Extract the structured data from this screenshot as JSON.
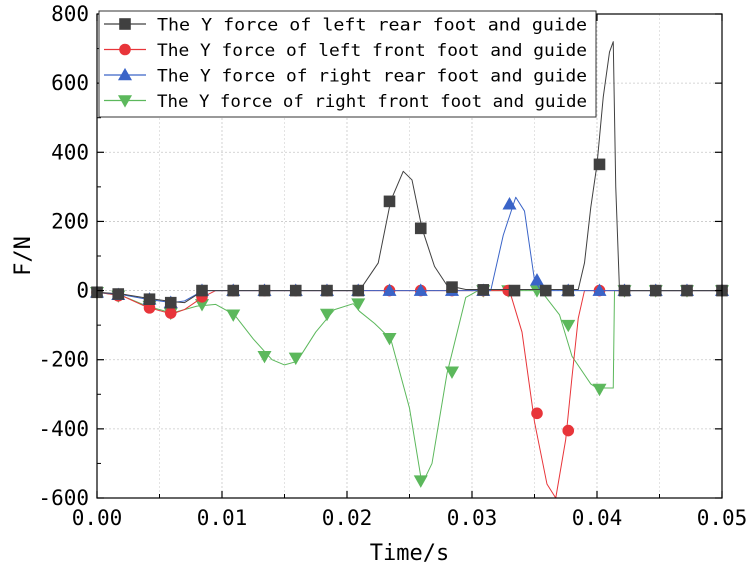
{
  "chart_data": {
    "type": "line",
    "title": "",
    "xlabel": "Time/s",
    "ylabel": "F/N",
    "xlim": [
      0,
      0.05
    ],
    "ylim": [
      -600,
      800
    ],
    "xticks": [
      0,
      0.01,
      0.02,
      0.03,
      0.04,
      0.05
    ],
    "xtick_labels": [
      "0.00",
      "0.01",
      "0.02",
      "0.03",
      "0.04",
      "0.05"
    ],
    "yticks": [
      -600,
      -400,
      -200,
      0,
      200,
      400,
      600,
      800
    ],
    "ytick_labels": [
      "-600",
      "-400",
      "-200",
      "0",
      "200",
      "400",
      "600",
      "800"
    ],
    "grid": true,
    "legend_position": "top-left",
    "series": [
      {
        "name": "The Y force of left rear foot and guide",
        "color": "#404040",
        "marker": "square",
        "line": [
          [
            0,
            -5
          ],
          [
            0.002,
            -10
          ],
          [
            0.004,
            -22
          ],
          [
            0.006,
            -32
          ],
          [
            0.007,
            -35
          ],
          [
            0.0085,
            0
          ],
          [
            0.021,
            0
          ],
          [
            0.0225,
            80
          ],
          [
            0.0235,
            260
          ],
          [
            0.0245,
            345
          ],
          [
            0.0252,
            320
          ],
          [
            0.026,
            180
          ],
          [
            0.027,
            70
          ],
          [
            0.028,
            15
          ],
          [
            0.0295,
            3
          ],
          [
            0.0385,
            3
          ],
          [
            0.039,
            80
          ],
          [
            0.0395,
            240
          ],
          [
            0.04,
            365
          ],
          [
            0.0405,
            560
          ],
          [
            0.041,
            690
          ],
          [
            0.0413,
            720
          ],
          [
            0.0415,
            300
          ],
          [
            0.0418,
            0
          ],
          [
            0.05,
            0
          ]
        ],
        "markers": [
          [
            0,
            -5
          ],
          [
            0.0017,
            -10
          ],
          [
            0.0042,
            -25
          ],
          [
            0.0059,
            -35
          ],
          [
            0.0084,
            0
          ],
          [
            0.0109,
            0
          ],
          [
            0.0134,
            0
          ],
          [
            0.0159,
            0
          ],
          [
            0.0184,
            0
          ],
          [
            0.0209,
            0
          ],
          [
            0.0234,
            258
          ],
          [
            0.0259,
            180
          ],
          [
            0.0284,
            10
          ],
          [
            0.0309,
            2
          ],
          [
            0.0334,
            0
          ],
          [
            0.0359,
            0
          ],
          [
            0.0377,
            0
          ],
          [
            0.0402,
            365
          ],
          [
            0.0422,
            0
          ],
          [
            0.0447,
            0
          ],
          [
            0.0472,
            0
          ],
          [
            0.05,
            0
          ]
        ]
      },
      {
        "name": "The Y force of left front foot and guide",
        "color": "#e8353a",
        "marker": "circle",
        "line": [
          [
            0,
            -5
          ],
          [
            0.002,
            -15
          ],
          [
            0.004,
            -48
          ],
          [
            0.006,
            -68
          ],
          [
            0.007,
            -55
          ],
          [
            0.0085,
            -18
          ],
          [
            0.0095,
            0
          ],
          [
            0.033,
            0
          ],
          [
            0.034,
            -120
          ],
          [
            0.035,
            -380
          ],
          [
            0.036,
            -560
          ],
          [
            0.0367,
            -600
          ],
          [
            0.0375,
            -430
          ],
          [
            0.038,
            -250
          ],
          [
            0.0385,
            -80
          ],
          [
            0.039,
            0
          ],
          [
            0.05,
            0
          ]
        ],
        "markers": [
          [
            0,
            -5
          ],
          [
            0.0017,
            -15
          ],
          [
            0.0042,
            -50
          ],
          [
            0.0059,
            -65
          ],
          [
            0.0084,
            -18
          ],
          [
            0.0109,
            0
          ],
          [
            0.0134,
            0
          ],
          [
            0.0159,
            0
          ],
          [
            0.0184,
            0
          ],
          [
            0.0209,
            0
          ],
          [
            0.0234,
            0
          ],
          [
            0.0259,
            0
          ],
          [
            0.0284,
            0
          ],
          [
            0.0309,
            0
          ],
          [
            0.0329,
            0
          ],
          [
            0.0352,
            -355
          ],
          [
            0.0377,
            -405
          ],
          [
            0.0402,
            0
          ],
          [
            0.0422,
            0
          ],
          [
            0.0447,
            0
          ],
          [
            0.0472,
            0
          ],
          [
            0.05,
            0
          ]
        ]
      },
      {
        "name": "The Y force of right rear foot and guide",
        "color": "#3a64c8",
        "marker": "triangle-up",
        "line": [
          [
            0,
            -5
          ],
          [
            0.002,
            -12
          ],
          [
            0.004,
            -25
          ],
          [
            0.006,
            -35
          ],
          [
            0.007,
            -30
          ],
          [
            0.0085,
            0
          ],
          [
            0.0315,
            0
          ],
          [
            0.0325,
            160
          ],
          [
            0.0335,
            270
          ],
          [
            0.0342,
            230
          ],
          [
            0.035,
            30
          ],
          [
            0.0355,
            0
          ],
          [
            0.05,
            0
          ]
        ],
        "markers": [
          [
            0,
            -5
          ],
          [
            0.0017,
            -12
          ],
          [
            0.0042,
            -25
          ],
          [
            0.0059,
            -35
          ],
          [
            0.0084,
            0
          ],
          [
            0.0109,
            0
          ],
          [
            0.0134,
            0
          ],
          [
            0.0159,
            0
          ],
          [
            0.0184,
            0
          ],
          [
            0.0209,
            0
          ],
          [
            0.0234,
            0
          ],
          [
            0.0259,
            0
          ],
          [
            0.0284,
            0
          ],
          [
            0.0309,
            0
          ],
          [
            0.033,
            250
          ],
          [
            0.0352,
            30
          ],
          [
            0.0377,
            0
          ],
          [
            0.0402,
            0
          ],
          [
            0.0422,
            0
          ],
          [
            0.0447,
            0
          ],
          [
            0.0472,
            0
          ],
          [
            0.05,
            0
          ]
        ]
      },
      {
        "name": "The Y force of right front foot and guide",
        "color": "#5cb85c",
        "marker": "triangle-down",
        "line": [
          [
            0,
            -5
          ],
          [
            0.002,
            -15
          ],
          [
            0.004,
            -45
          ],
          [
            0.006,
            -65
          ],
          [
            0.008,
            -45
          ],
          [
            0.0095,
            -40
          ],
          [
            0.011,
            -70
          ],
          [
            0.0125,
            -140
          ],
          [
            0.014,
            -200
          ],
          [
            0.015,
            -215
          ],
          [
            0.016,
            -205
          ],
          [
            0.0175,
            -120
          ],
          [
            0.019,
            -55
          ],
          [
            0.0205,
            -38
          ],
          [
            0.021,
            -60
          ],
          [
            0.0222,
            -95
          ],
          [
            0.0235,
            -140
          ],
          [
            0.025,
            -340
          ],
          [
            0.026,
            -560
          ],
          [
            0.0268,
            -500
          ],
          [
            0.028,
            -240
          ],
          [
            0.0295,
            -20
          ],
          [
            0.0305,
            0
          ],
          [
            0.0355,
            0
          ],
          [
            0.037,
            -70
          ],
          [
            0.038,
            -190
          ],
          [
            0.0395,
            -270
          ],
          [
            0.04,
            -282
          ],
          [
            0.0413,
            -282
          ],
          [
            0.0414,
            0
          ],
          [
            0.05,
            0
          ]
        ],
        "markers": [
          [
            0,
            -5
          ],
          [
            0.0017,
            -15
          ],
          [
            0.0042,
            -45
          ],
          [
            0.0059,
            -65
          ],
          [
            0.0084,
            -40
          ],
          [
            0.0109,
            -70
          ],
          [
            0.0134,
            -190
          ],
          [
            0.0159,
            -195
          ],
          [
            0.0184,
            -68
          ],
          [
            0.0209,
            -38
          ],
          [
            0.0234,
            -138
          ],
          [
            0.0259,
            -550
          ],
          [
            0.0284,
            -235
          ],
          [
            0.0309,
            0
          ],
          [
            0.0329,
            0
          ],
          [
            0.0352,
            0
          ],
          [
            0.0377,
            -100
          ],
          [
            0.0402,
            -285
          ],
          [
            0.0422,
            0
          ],
          [
            0.0447,
            0
          ],
          [
            0.0472,
            0
          ],
          [
            0.05,
            0
          ]
        ]
      }
    ]
  }
}
